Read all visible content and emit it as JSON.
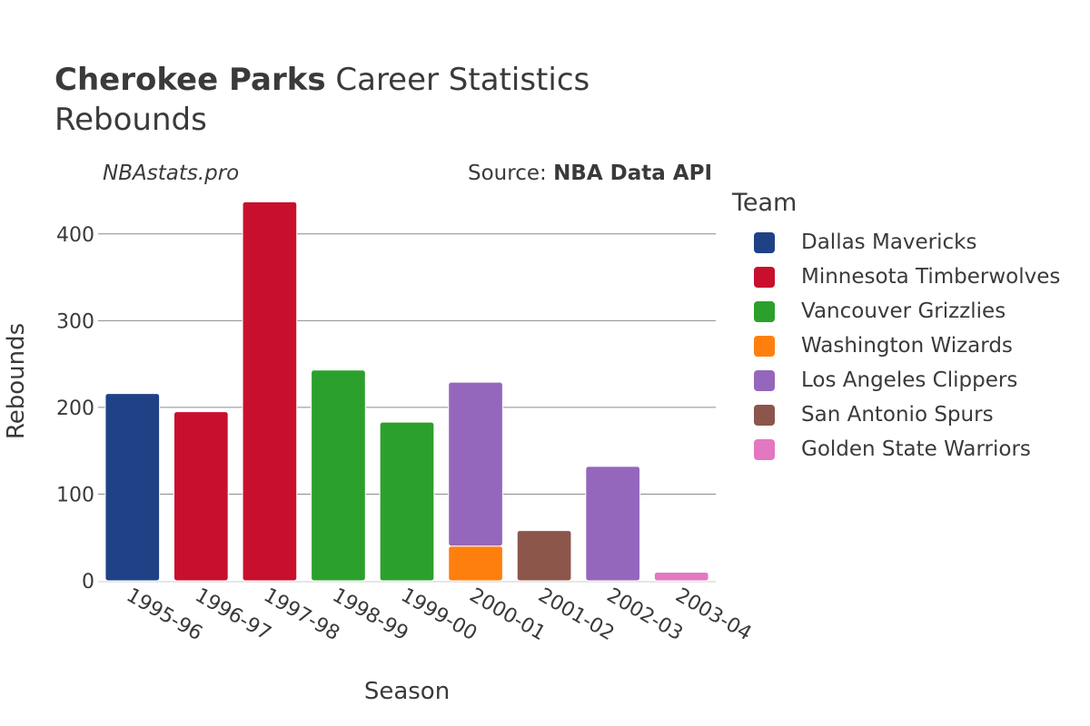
{
  "header": {
    "title_bold": "Cherokee Parks",
    "title_rest": " Career Statistics",
    "subtitle": "Rebounds",
    "watermark": "NBAstats.pro",
    "source_prefix": "Source: ",
    "source_name": "NBA Data API"
  },
  "legend": {
    "title": "Team",
    "items": [
      {
        "label": "Dallas Mavericks",
        "color": "#1f4287"
      },
      {
        "label": "Minnesota Timberwolves",
        "color": "#c8102e"
      },
      {
        "label": "Vancouver Grizzlies",
        "color": "#2ca02c"
      },
      {
        "label": "Washington Wizards",
        "color": "#ff7f0e"
      },
      {
        "label": "Los Angeles Clippers",
        "color": "#9467bd"
      },
      {
        "label": "San Antonio Spurs",
        "color": "#8c564b"
      },
      {
        "label": "Golden State Warriors",
        "color": "#e377c2"
      }
    ]
  },
  "chart_data": {
    "type": "bar",
    "stacked": true,
    "xlabel": "Season",
    "ylabel": "Rebounds",
    "ylim": [
      0,
      450
    ],
    "yticks": [
      0,
      100,
      200,
      300,
      400
    ],
    "grid": true,
    "categories": [
      "1995-96",
      "1996-97",
      "1997-98",
      "1998-99",
      "1999-00",
      "2000-01",
      "2001-02",
      "2002-03",
      "2003-04"
    ],
    "series": [
      {
        "name": "Dallas Mavericks",
        "color": "#1f4287",
        "values": [
          216,
          0,
          0,
          0,
          0,
          0,
          0,
          0,
          0
        ]
      },
      {
        "name": "Minnesota Timberwolves",
        "color": "#c8102e",
        "values": [
          0,
          195,
          437,
          0,
          0,
          0,
          0,
          0,
          0
        ]
      },
      {
        "name": "Vancouver Grizzlies",
        "color": "#2ca02c",
        "values": [
          0,
          0,
          0,
          243,
          183,
          0,
          0,
          0,
          0
        ]
      },
      {
        "name": "Washington Wizards",
        "color": "#ff7f0e",
        "values": [
          0,
          0,
          0,
          0,
          0,
          40,
          0,
          0,
          0
        ]
      },
      {
        "name": "Los Angeles Clippers",
        "color": "#9467bd",
        "values": [
          0,
          0,
          0,
          0,
          0,
          189,
          0,
          132,
          0
        ]
      },
      {
        "name": "San Antonio Spurs",
        "color": "#8c564b",
        "values": [
          0,
          0,
          0,
          0,
          0,
          0,
          58,
          0,
          0
        ]
      },
      {
        "name": "Golden State Warriors",
        "color": "#e377c2",
        "values": [
          0,
          0,
          0,
          0,
          0,
          0,
          0,
          0,
          10
        ]
      }
    ]
  }
}
